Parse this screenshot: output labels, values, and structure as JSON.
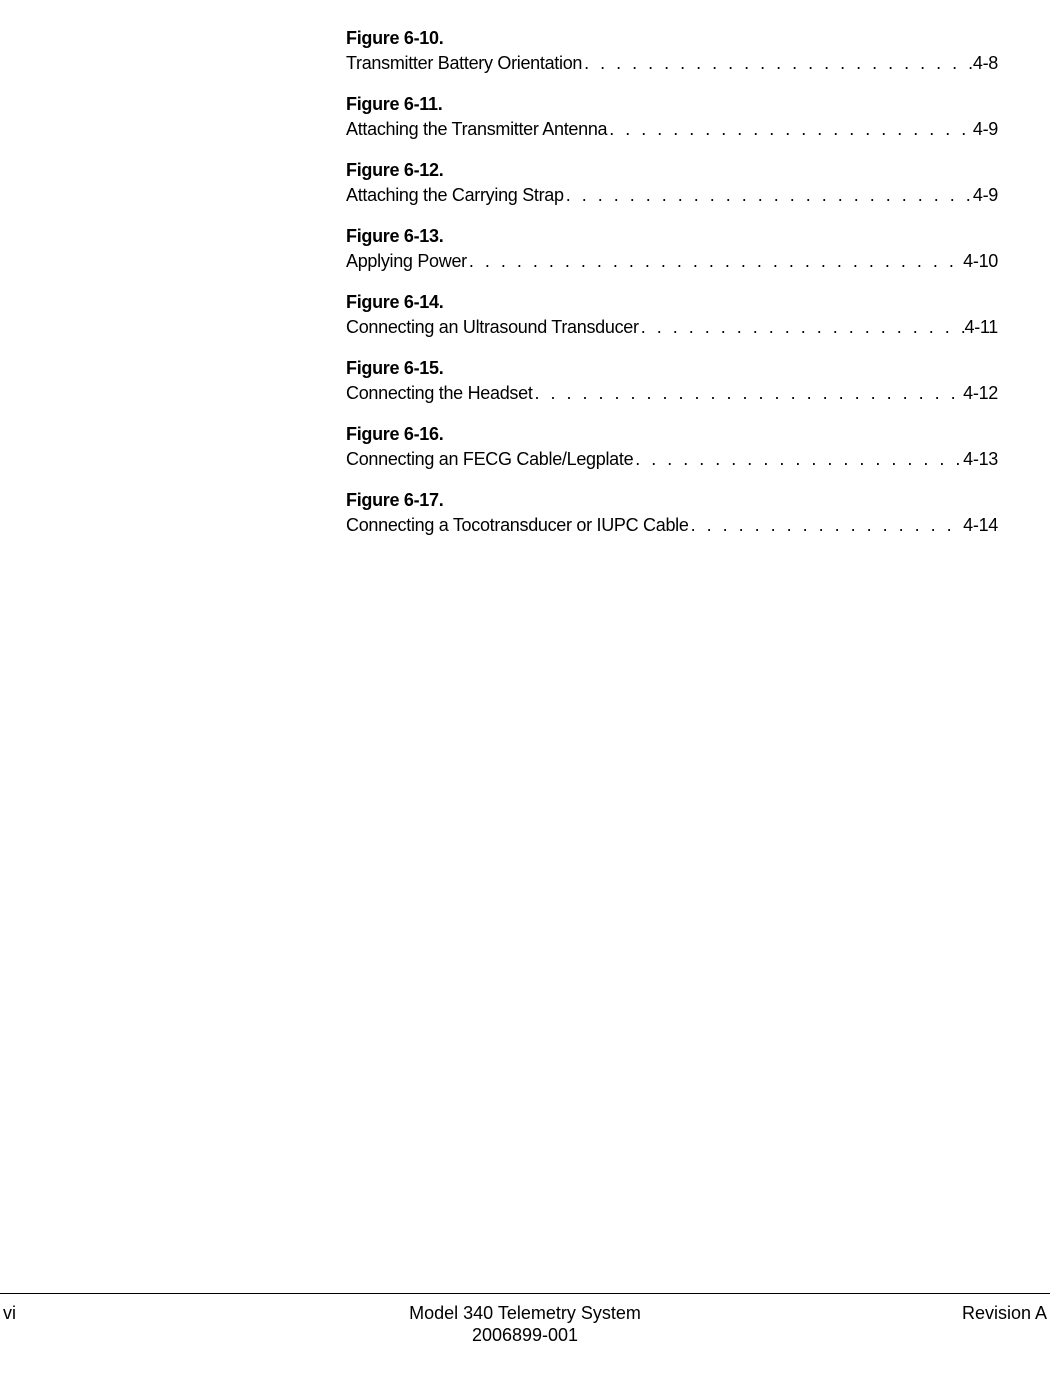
{
  "entries": [
    {
      "label": "Figure 6-10.",
      "title": "Transmitter Battery Orientation",
      "page": "4-8"
    },
    {
      "label": "Figure 6-11.",
      "title": "Attaching the Transmitter Antenna",
      "page": "4-9"
    },
    {
      "label": "Figure 6-12.",
      "title": "Attaching the Carrying Strap",
      "page": "4-9"
    },
    {
      "label": "Figure 6-13.",
      "title": "Applying Power",
      "page": "4-10"
    },
    {
      "label": "Figure 6-14.",
      "title": "Connecting an Ultrasound Transducer",
      "page": "4-11"
    },
    {
      "label": "Figure 6-15.",
      "title": "Connecting the Headset",
      "page": "4-12"
    },
    {
      "label": "Figure 6-16.",
      "title": "Connecting an FECG Cable/Legplate ",
      "page": "4-13"
    },
    {
      "label": "Figure 6-17.",
      "title": "Connecting a Tocotransducer or IUPC Cable ",
      "page": "4-14"
    }
  ],
  "leader": ". . . . . . . . . . . . . . . . . . . . . . . . . . . . . . . . . . . . . . . . . . . . . . . . . . . . . . . . . . . . . . . . . . . . . . . . . . . . . . . .",
  "footer": {
    "page_num": "vi",
    "center1": "Model 340 Telemetry System",
    "center2": "2006899-001",
    "revision": "Revision A"
  },
  "colors": {
    "text": "#000000",
    "background": "#ffffff"
  },
  "typography": {
    "body_fontsize": 18,
    "label_weight": "bold"
  }
}
